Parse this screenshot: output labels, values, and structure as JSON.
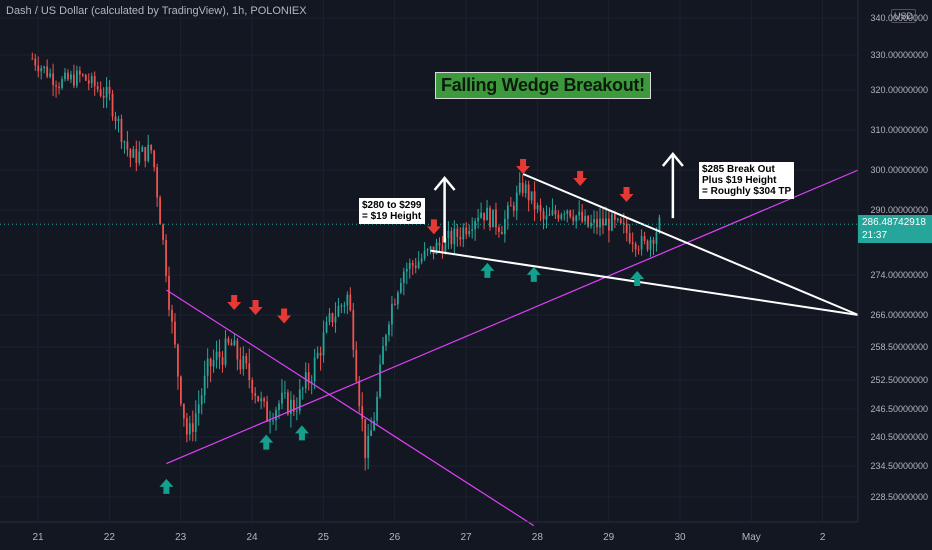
{
  "header": {
    "title": "Dash / US Dollar (calculated by TradingView), 1h, POLONIEX",
    "currency": "USD"
  },
  "price_tag": {
    "price": "286.48742918",
    "countdown": "21:37"
  },
  "annotations": {
    "banner": "Falling Wedge Breakout!",
    "left_note": [
      "$280 to $299",
      "= $19 Height"
    ],
    "right_note": [
      "$285 Break Out",
      "Plus $19 Height",
      "= Roughly $304 TP"
    ]
  },
  "colors": {
    "background": "#131722",
    "up_candle": "#26a69a",
    "down_candle": "#ef5350",
    "support_line": "#e040fb",
    "wedge_line": "#ffffff",
    "down_arrow": "#e53935",
    "up_arrow": "#14a08c",
    "banner_bg": "#3c9a3c"
  },
  "chart_data": {
    "type": "candlestick",
    "title": "Dash / US Dollar (calculated by TradingView), 1h, POLONIEX",
    "x_tick_labels": [
      "21",
      "22",
      "23",
      "24",
      "25",
      "26",
      "27",
      "28",
      "29",
      "30",
      "May",
      "2"
    ],
    "y_tick_labels": [
      "340.00000000",
      "330.00000000",
      "320.00000000",
      "310.00000000",
      "300.00000000",
      "290.00000000",
      "274.00000000",
      "266.00000000",
      "258.50000000",
      "252.50000000",
      "246.50000000",
      "240.50000000",
      "234.50000000",
      "228.50000000"
    ],
    "price_path": [
      {
        "x": 20.92,
        "y": 329
      },
      {
        "x": 21.3,
        "y": 322
      },
      {
        "x": 21.6,
        "y": 324
      },
      {
        "x": 22.0,
        "y": 318
      },
      {
        "x": 22.3,
        "y": 303
      },
      {
        "x": 22.6,
        "y": 305
      },
      {
        "x": 22.9,
        "y": 260
      },
      {
        "x": 23.1,
        "y": 240
      },
      {
        "x": 23.4,
        "y": 255
      },
      {
        "x": 23.7,
        "y": 259
      },
      {
        "x": 24.0,
        "y": 252
      },
      {
        "x": 24.2,
        "y": 245
      },
      {
        "x": 24.4,
        "y": 248
      },
      {
        "x": 24.6,
        "y": 247
      },
      {
        "x": 24.9,
        "y": 256
      },
      {
        "x": 25.1,
        "y": 265
      },
      {
        "x": 25.35,
        "y": 270
      },
      {
        "x": 25.6,
        "y": 236
      },
      {
        "x": 25.75,
        "y": 248
      },
      {
        "x": 25.9,
        "y": 265
      },
      {
        "x": 26.1,
        "y": 275
      },
      {
        "x": 26.3,
        "y": 277
      },
      {
        "x": 26.6,
        "y": 281
      },
      {
        "x": 26.9,
        "y": 284
      },
      {
        "x": 27.2,
        "y": 290
      },
      {
        "x": 27.5,
        "y": 286
      },
      {
        "x": 27.8,
        "y": 296
      },
      {
        "x": 28.1,
        "y": 287
      },
      {
        "x": 28.4,
        "y": 291
      },
      {
        "x": 28.7,
        "y": 286
      },
      {
        "x": 29.0,
        "y": 287
      },
      {
        "x": 29.3,
        "y": 284
      },
      {
        "x": 29.5,
        "y": 281
      },
      {
        "x": 29.72,
        "y": 286.49
      }
    ],
    "trend_lines": [
      {
        "name": "support",
        "color": "#e040fb",
        "from": {
          "x": 22.8,
          "y": 235
        },
        "to": {
          "x": 32.5,
          "y": 300
        }
      },
      {
        "name": "descending",
        "color": "#e040fb",
        "from": {
          "x": 22.8,
          "y": 271
        },
        "to": {
          "x": 27.95,
          "y": 223
        }
      },
      {
        "name": "wedge_upper",
        "color": "#ffffff",
        "from": {
          "x": 27.8,
          "y": 299
        },
        "to": {
          "x": 32.5,
          "y": 266
        }
      },
      {
        "name": "wedge_lower",
        "color": "#ffffff",
        "from": {
          "x": 26.5,
          "y": 280
        },
        "to": {
          "x": 32.5,
          "y": 266
        }
      }
    ],
    "arrows_down": [
      {
        "x": 23.75,
        "y": 267
      },
      {
        "x": 24.05,
        "y": 266
      },
      {
        "x": 24.45,
        "y": 264
      },
      {
        "x": 26.55,
        "y": 284
      },
      {
        "x": 27.8,
        "y": 299
      },
      {
        "x": 28.6,
        "y": 296
      },
      {
        "x": 29.25,
        "y": 292
      }
    ],
    "arrows_up": [
      {
        "x": 22.8,
        "y": 232
      },
      {
        "x": 24.2,
        "y": 241
      },
      {
        "x": 24.7,
        "y": 243
      },
      {
        "x": 27.3,
        "y": 277
      },
      {
        "x": 27.95,
        "y": 276
      },
      {
        "x": 29.4,
        "y": 275
      }
    ],
    "height_arrows": [
      {
        "x": 26.7,
        "y_from": 282,
        "y_to": 298
      },
      {
        "x": 29.9,
        "y_from": 288,
        "y_to": 304
      }
    ],
    "last_price": 286.48742918
  }
}
